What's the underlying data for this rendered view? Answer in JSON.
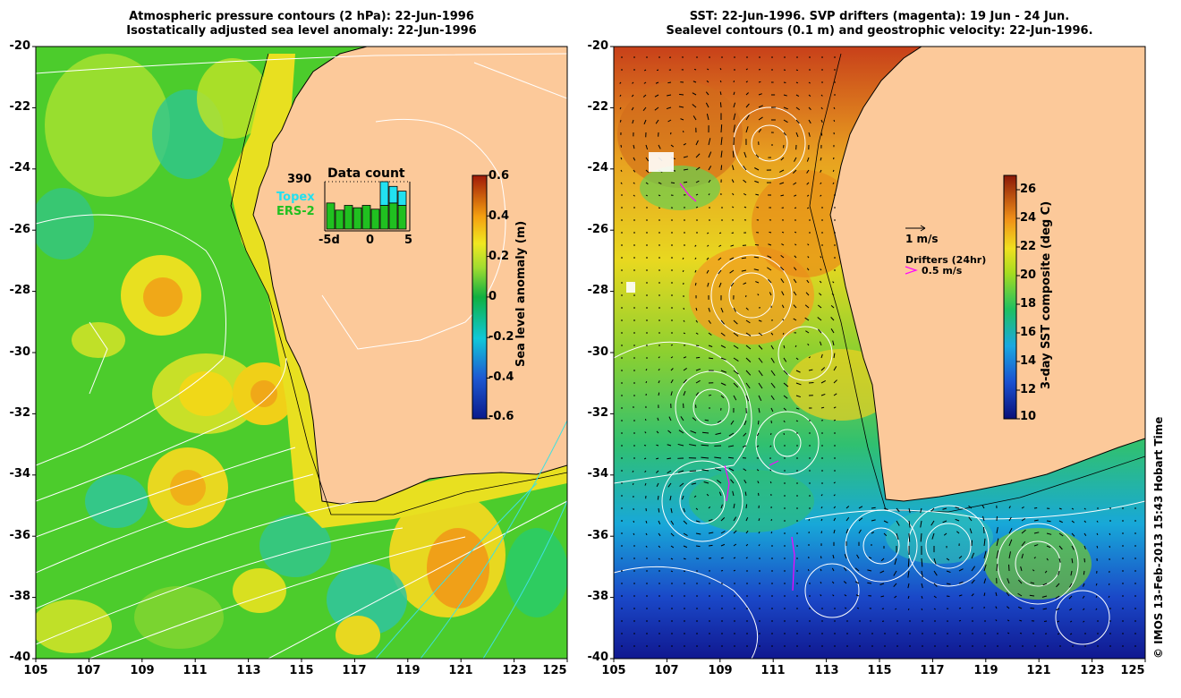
{
  "left_panel": {
    "title_line1": "Atmospheric pressure contours (2 hPa): 22-Jun-1996",
    "title_line2": "Isostatically adjusted sea level anomaly: 22-Jun-1996",
    "colorbar_title": "Sea level anomaly (m)",
    "colorbar_ticks": [
      "0.6",
      "0.4",
      "0.2",
      "0",
      "-0.2",
      "-0.4",
      "-0.6"
    ],
    "data_count": {
      "title": "Data count",
      "max_label": "390",
      "topex_label": "Topex",
      "ers_label": "ERS-2",
      "x_ticks": [
        "-5d",
        "0",
        "5"
      ],
      "topex_color": "#22e0f0",
      "ers_color": "#20c020"
    }
  },
  "right_panel": {
    "title_line1": "SST: 22-Jun-1996. SVP drifters (magenta): 19 Jun - 24 Jun.",
    "title_line2": "Sealevel contours (0.1 m) and geostrophic velocity: 22-Jun-1996.",
    "colorbar_title": "3-day SST composite (deg C)",
    "colorbar_ticks": [
      "26",
      "24",
      "22",
      "20",
      "18",
      "16",
      "14",
      "12",
      "10"
    ],
    "velocity_scale_label": "1 m/s",
    "drifters_label": "Drifters (24hr)",
    "drifter_speed_label": "0.5 m/s",
    "drifter_color": "#ff00ff"
  },
  "axes": {
    "lat_ticks": [
      "-20",
      "-22",
      "-24",
      "-26",
      "-28",
      "-30",
      "-32",
      "-34",
      "-36",
      "-38",
      "-40"
    ],
    "lon_ticks": [
      "105",
      "107",
      "109",
      "111",
      "113",
      "115",
      "117",
      "119",
      "121",
      "123",
      "125"
    ]
  },
  "credit": "© IMOS 13-Feb-2013 15:43 Hobart Time",
  "land_color": "#fcc99a"
}
